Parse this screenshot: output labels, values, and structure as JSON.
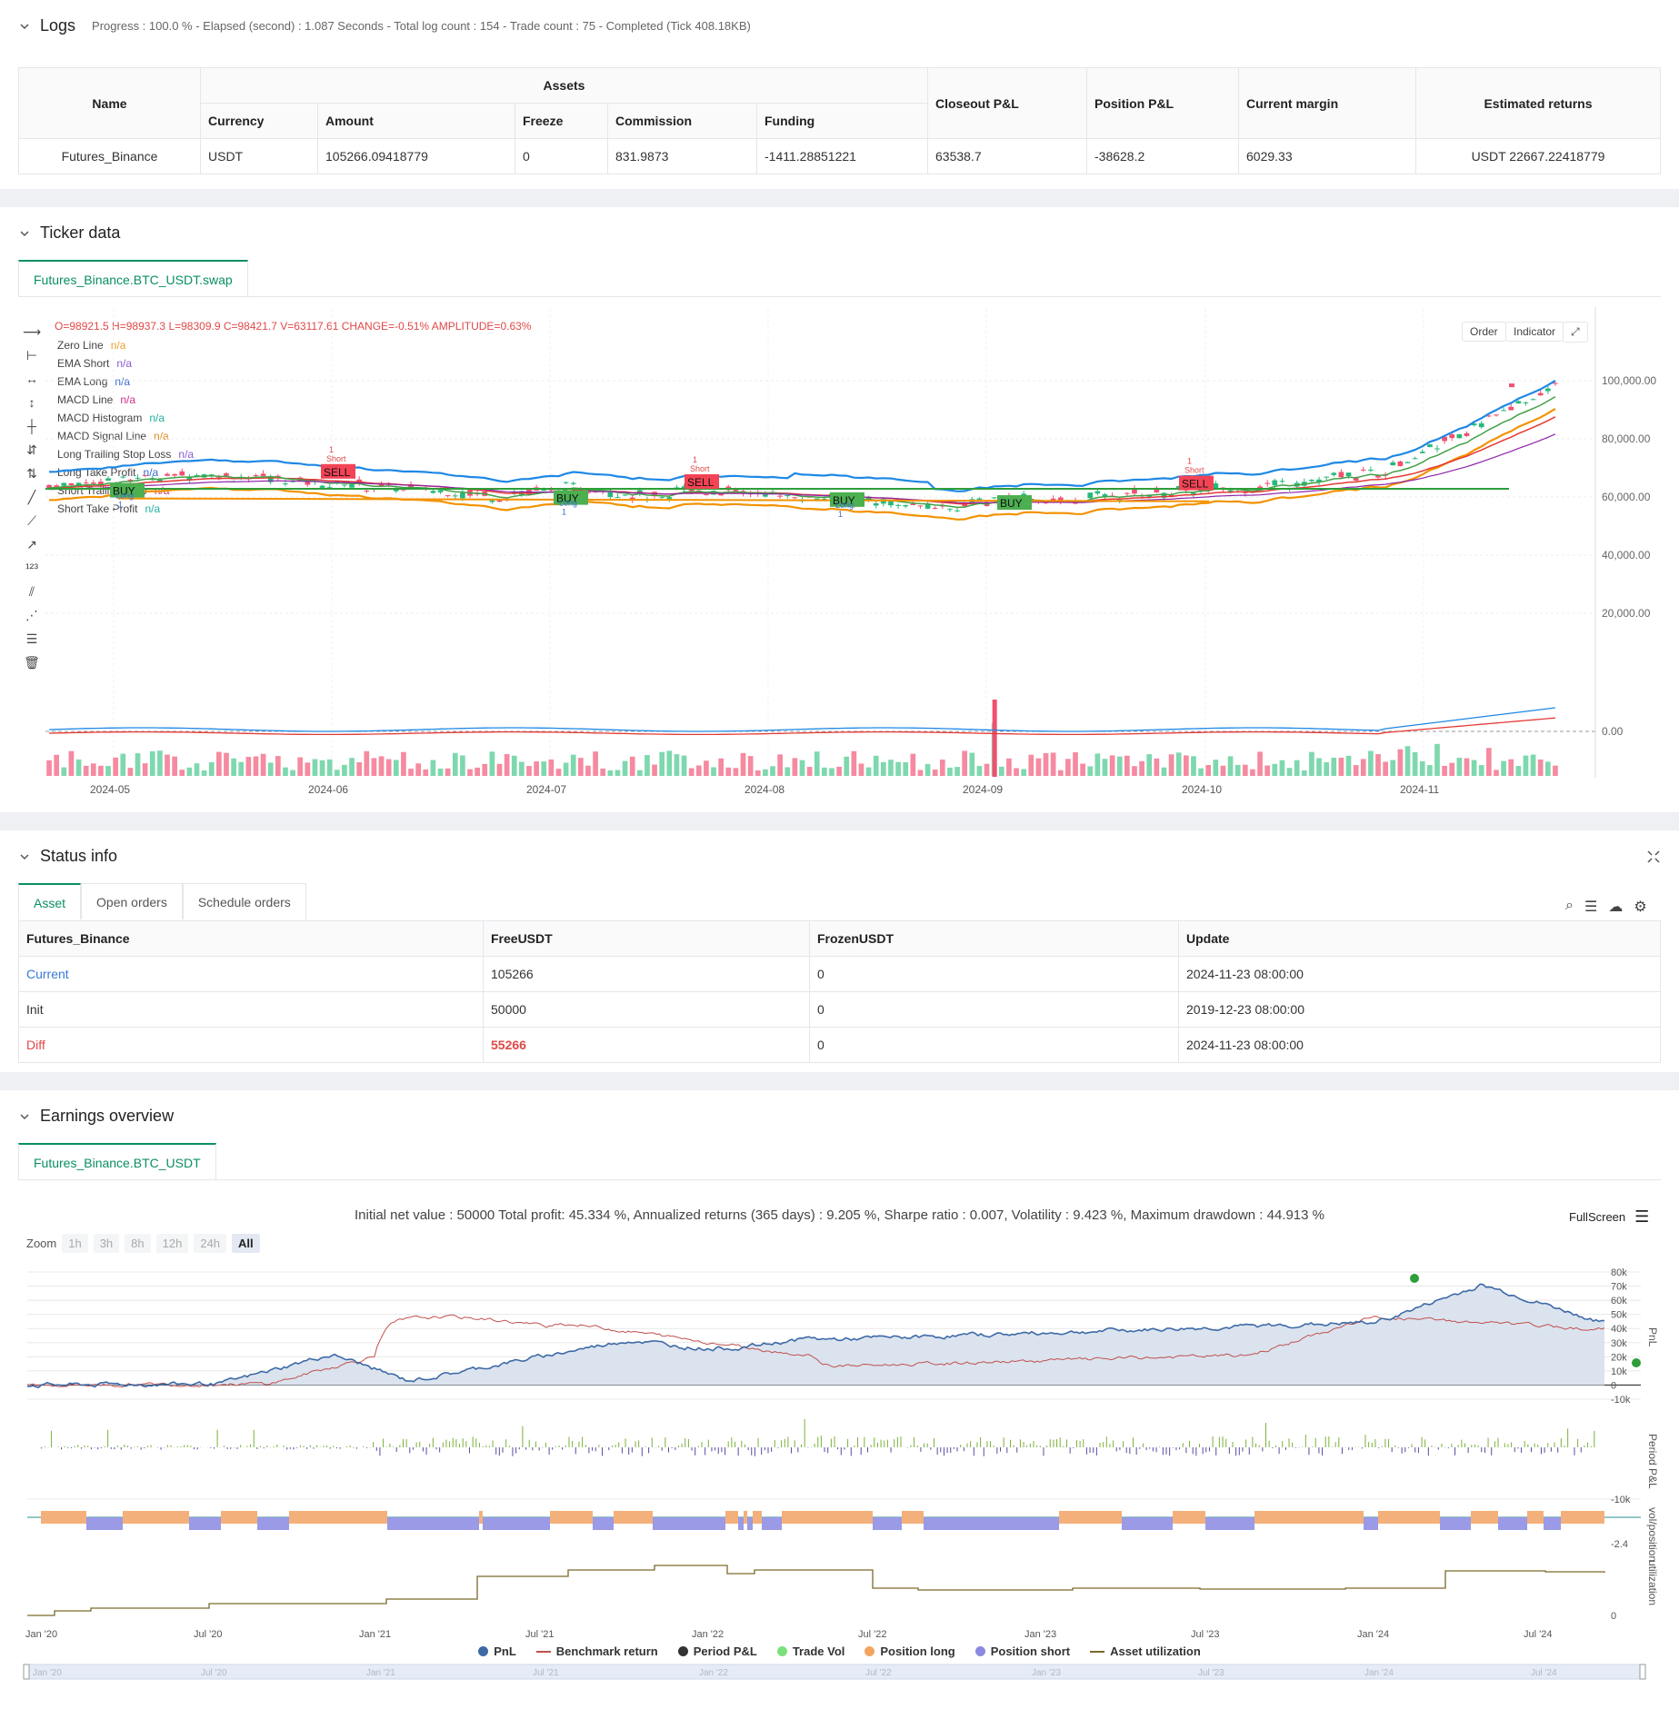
{
  "logs": {
    "title": "Logs",
    "summary": "Progress : 100.0 % - Elapsed (second) : 1.087  Seconds - Total log count : 154 - Trade count : 75 - Completed (Tick 408.18KB)",
    "headers": {
      "name": "Name",
      "assets": "Assets",
      "currency": "Currency",
      "amount": "Amount",
      "freeze": "Freeze",
      "commission": "Commission",
      "funding": "Funding",
      "closeout": "Closeout P&L",
      "position": "Position P&L",
      "margin": "Current margin",
      "returns": "Estimated returns"
    },
    "row": {
      "name": "Futures_Binance",
      "currency": "USDT",
      "amount": "105266.09418779",
      "freeze": "0",
      "commission": "831.9873",
      "funding": "-1411.28851221",
      "closeout": "63538.7",
      "position": "-38628.2",
      "margin": "6029.33",
      "returns": "USDT 22667.22418779"
    }
  },
  "ticker": {
    "title": "Ticker data",
    "tab": "Futures_Binance.BTC_USDT.swap",
    "ohlc": "O=98921.5 H=98937.3 L=98309.9 C=98421.7 V=63117.61 CHANGE=-0.51% AMPLITUDE=0.63%",
    "order_btn": "Order",
    "indicator_btn": "Indicator",
    "legend": [
      {
        "label": "Zero Line",
        "value": "n/a",
        "color": "#f0a030"
      },
      {
        "label": "EMA Short",
        "value": "n/a",
        "color": "#8a5ad0"
      },
      {
        "label": "EMA Long",
        "value": "n/a",
        "color": "#3a6ad0"
      },
      {
        "label": "MACD Line",
        "value": "n/a",
        "color": "#d0308a"
      },
      {
        "label": "MACD Histogram",
        "value": "n/a",
        "color": "#20b0a0"
      },
      {
        "label": "MACD Signal Line",
        "value": "n/a",
        "color": "#e08a20"
      },
      {
        "label": "Long Trailing Stop Loss",
        "value": "n/a",
        "color": "#8a5ad0"
      },
      {
        "label": "Long Take Profit",
        "value": "n/a",
        "color": "#3a6ad0"
      },
      {
        "label": "Short Trailing Stop",
        "value": "n/a",
        "color": "#d0308a"
      },
      {
        "label": "Short Take Profit",
        "value": "n/a",
        "color": "#20b0a0"
      }
    ],
    "y_ticks": [
      "100,000.00",
      "80,000.00",
      "60,000.00",
      "40,000.00",
      "20,000.00",
      "0.00"
    ],
    "x_ticks": [
      "2024-05",
      "2024-06",
      "2024-07",
      "2024-08",
      "2024-09",
      "2024-10",
      "2024-11"
    ],
    "signals": [
      {
        "type": "BUY",
        "sub": "Long",
        "n": "1"
      },
      {
        "type": "SELL",
        "sub": "Short",
        "n": "1"
      },
      {
        "type": "BUY",
        "sub": "Long",
        "n": "1"
      },
      {
        "type": "SELL",
        "sub": "Short",
        "n": "1"
      },
      {
        "type": "BUY",
        "sub": "Long",
        "n": "1"
      },
      {
        "type": "BUY",
        "sub": "",
        "n": ""
      },
      {
        "type": "SELL",
        "sub": "Short",
        "n": "1"
      }
    ]
  },
  "status": {
    "title": "Status info",
    "tabs": [
      "Asset",
      "Open orders",
      "Schedule orders"
    ],
    "headers": [
      "Futures_Binance",
      "FreeUSDT",
      "FrozenUSDT",
      "Update"
    ],
    "rows": [
      {
        "name": "Current",
        "free": "105266",
        "frozen": "0",
        "update": "2024-11-23 08:00:00"
      },
      {
        "name": "Init",
        "free": "50000",
        "frozen": "0",
        "update": "2019-12-23 08:00:00"
      },
      {
        "name": "Diff",
        "free": "55266",
        "frozen": "0",
        "update": "2024-11-23 08:00:00"
      }
    ]
  },
  "earnings": {
    "title": "Earnings overview",
    "tab": "Futures_Binance.BTC_USDT",
    "stats": "Initial net value : 50000 Total profit: 45.334 %, Annualized returns (365 days) : 9.205 %, Sharpe ratio : 0.007, Volatility : 9.423 %, Maximum drawdown : 44.913 %",
    "fullscreen": "FullScreen",
    "zoom_label": "Zoom",
    "zoom_opts": [
      "1h",
      "3h",
      "8h",
      "12h",
      "24h",
      "All"
    ],
    "pnl_ticks": [
      "80k",
      "70k",
      "60k",
      "50k",
      "40k",
      "30k",
      "20k",
      "10k",
      "0",
      "-10k"
    ],
    "period_ticks": [
      "0",
      "-10k"
    ],
    "pos_ticks": [
      "-2.4"
    ],
    "util_ticks": [
      "0"
    ],
    "axis_labels": {
      "pnl": "PnL",
      "period": "Period P&L",
      "pos": "vol/position",
      "util": "utilization"
    },
    "x_ticks": [
      "Jan '20",
      "Jul '20",
      "Jan '21",
      "Jul '21",
      "Jan '22",
      "Jul '22",
      "Jan '23",
      "Jul '23",
      "Jan '24",
      "Jul '24"
    ],
    "legend": [
      {
        "label": "PnL",
        "color": "#3e6aa6",
        "kind": "dot"
      },
      {
        "label": "Benchmark return",
        "color": "#c0504d",
        "kind": "line"
      },
      {
        "label": "Period P&L",
        "color": "#333333",
        "kind": "dot"
      },
      {
        "label": "Trade Vol",
        "color": "#7be07b",
        "kind": "dot"
      },
      {
        "label": "Position long",
        "color": "#f4a460",
        "kind": "dot"
      },
      {
        "label": "Position short",
        "color": "#8a8ae0",
        "kind": "dot"
      },
      {
        "label": "Asset utilization",
        "color": "#7a6a2a",
        "kind": "line"
      }
    ]
  }
}
